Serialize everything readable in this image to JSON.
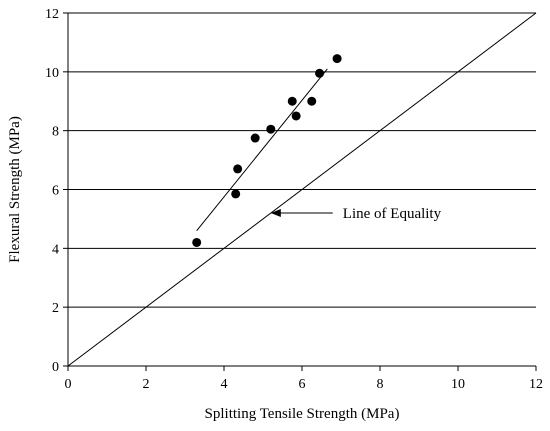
{
  "chart_data": {
    "type": "scatter",
    "xlabel": "Splitting Tensile Strength (MPa)",
    "ylabel": "Flexural Strength (MPa)",
    "xlim": [
      0,
      12
    ],
    "ylim": [
      0,
      12
    ],
    "x_ticks": [
      "0",
      "2",
      "4",
      "6",
      "8",
      "10",
      "12"
    ],
    "y_ticks": [
      "0",
      "2",
      "4",
      "6",
      "8",
      "10",
      "12"
    ],
    "grid": "horizontal",
    "legend": "none",
    "series": [
      {
        "points": [
          {
            "x": 3.3,
            "y": 4.2
          },
          {
            "x": 4.3,
            "y": 5.85
          },
          {
            "x": 4.35,
            "y": 6.7
          },
          {
            "x": 4.8,
            "y": 7.75
          },
          {
            "x": 5.2,
            "y": 8.05
          },
          {
            "x": 5.75,
            "y": 9.0
          },
          {
            "x": 5.85,
            "y": 8.5
          },
          {
            "x": 6.25,
            "y": 9.0
          },
          {
            "x": 6.45,
            "y": 9.95
          },
          {
            "x": 6.9,
            "y": 10.45
          }
        ]
      }
    ],
    "trend_line": {
      "x1": 3.3,
      "y1": 4.6,
      "x2": 6.65,
      "y2": 10.1
    },
    "equality_line": {
      "x1": 0,
      "y1": 0,
      "x2": 12,
      "y2": 12
    },
    "annotation": {
      "text": "Line of Equality",
      "arrow_to": {
        "x": 5.2,
        "y": 5.2
      }
    },
    "colors": {
      "axes": "#000000",
      "grid": "#000000",
      "markers": "#000000"
    }
  }
}
